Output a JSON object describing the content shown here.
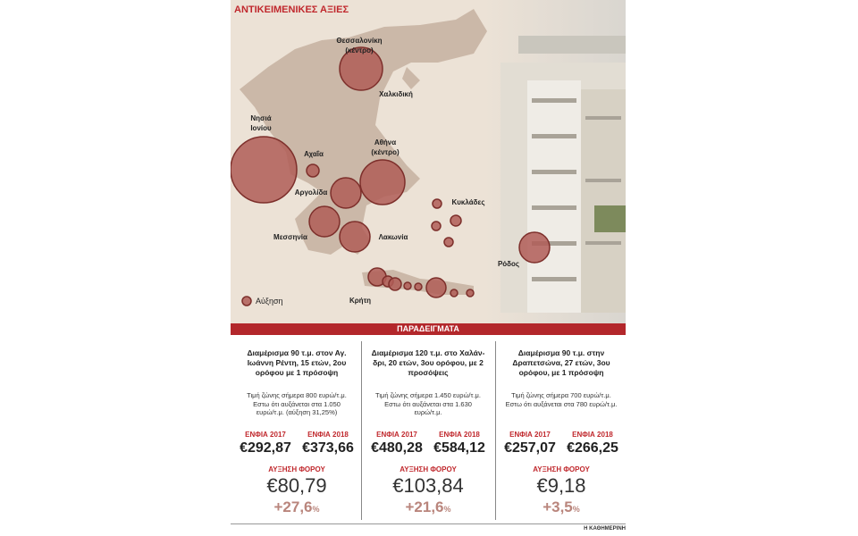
{
  "header": {
    "title": "ΑΝΤΙΚΕΙΜΕΝΙΚΕΣ ΑΞΙΕΣ"
  },
  "map": {
    "labels": [
      "Θεσσαλονίκη",
      "(κέντρο)",
      "Χαλκιδική",
      "Νησιά",
      "Ιονίου",
      "Αχαΐα",
      "Αθήνα",
      "(κέντρο)",
      "Αργολίδα",
      "Κυκλάδες",
      "Μεσσηνία",
      "Λακωνία",
      "Ρόδος",
      "Κρήτη"
    ],
    "legend": "Αύξηση"
  },
  "section_title": "ΠΑΡΑΔΕΙΓΜΑΤΑ",
  "columns": [
    {
      "description": [
        "Διαμέρισμα 90 τ.μ. στον Αγ.",
        "Ιωάννη Ρέντη, 15 ετών, 2ου",
        "ορόφου με 1 πρόσοψη"
      ],
      "details": [
        "Τιμή ζώνης σήμερα 800 ευρώ/τ.μ.",
        "Εστω ότι αυξάνεται στα 1.050",
        "ευρώ/τ.μ. (αύξηση 31,25%)"
      ],
      "enfia_2017_label": "ΕΝΦΙΑ 2017",
      "enfia_2017": "€292,87",
      "enfia_2018_label": "ΕΝΦΙΑ 2018",
      "enfia_2018": "€373,66",
      "increase_label": "ΑΥΞΗΣΗ ΦΟΡΟΥ",
      "increase": "€80,79",
      "increase_pct": "+27,6",
      "pct_sign": "%"
    },
    {
      "description": [
        "Διαμέρισμα 120 τ.μ. στο Χαλάν-",
        "δρι, 20 ετών, 3ου ορόφου, με 2",
        "προσόψεις"
      ],
      "details": [
        "Τιμή ζώνης σήμερα 1.450 ευρώ/τ.μ.",
        "Εστω ότι αυξάνεται στα 1.630",
        "ευρώ/τ.μ."
      ],
      "enfia_2017_label": "ΕΝΦΙΑ 2017",
      "enfia_2017": "€480,28",
      "enfia_2018_label": "ΕΝΦΙΑ 2018",
      "enfia_2018": "€584,12",
      "increase_label": "ΑΥΞΗΣΗ ΦΟΡΟΥ",
      "increase": "€103,84",
      "increase_pct": "+21,6",
      "pct_sign": "%"
    },
    {
      "description": [
        "Διαμέρισμα 90 τ.μ. στην",
        "Δραπετσώνα, 27 ετών, 3ου",
        "ορόφου, με 1 πρόσοψη"
      ],
      "details": [
        "Τιμή ζώνης σήμερα 700 ευρώ/τ.μ.",
        "Εστω ότι αυξάνεται στα 780 ευρώ/τ.μ."
      ],
      "enfia_2017_label": "ΕΝΦΙΑ 2017",
      "enfia_2017": "€257,07",
      "enfia_2018_label": "ΕΝΦΙΑ 2018",
      "enfia_2018": "€266,25",
      "increase_label": "ΑΥΞΗΣΗ ΦΟΡΟΥ",
      "increase": "€9,18",
      "increase_pct": "+3,5",
      "pct_sign": "%"
    }
  ],
  "footer": {
    "source": "Η ΚΑΘΗΜΕΡΙΝΗ"
  }
}
